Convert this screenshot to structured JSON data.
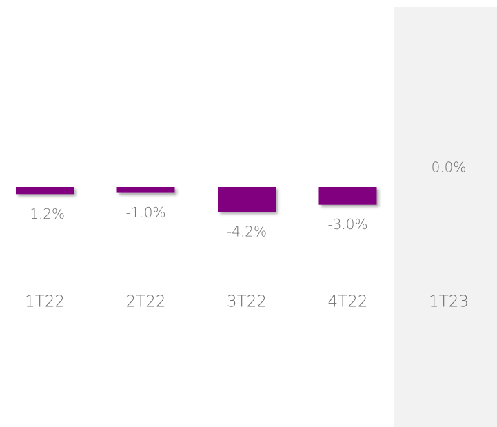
{
  "chart_data": {
    "type": "bar",
    "categories": [
      "1T22",
      "2T22",
      "3T22",
      "4T22",
      "1T23"
    ],
    "values": [
      -1.2,
      -1.0,
      -4.2,
      -3.0,
      0.0
    ],
    "value_labels": [
      "-1.2%",
      "-1.0%",
      "-4.2%",
      "-3.0%",
      "0.0%"
    ],
    "color": "#800080",
    "ylim": [
      -5,
      0
    ]
  }
}
